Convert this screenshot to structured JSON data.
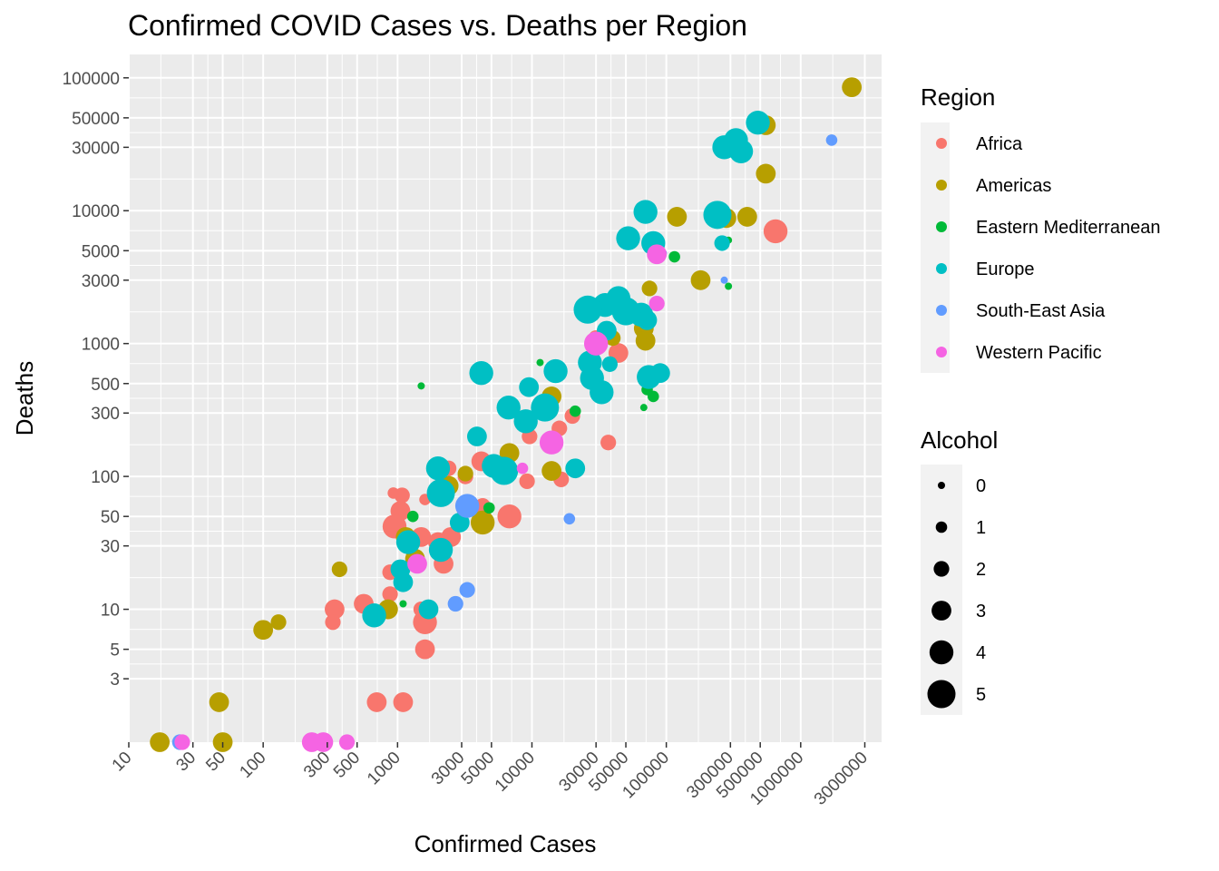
{
  "chart_data": {
    "type": "scatter",
    "title": "Confirmed COVID Cases vs. Deaths per Region",
    "xlabel": "Confirmed Cases",
    "ylabel": "Deaths",
    "x_scale": "log10",
    "y_scale": "log10",
    "xlim": [
      10,
      4000000
    ],
    "ylim": [
      1,
      150000
    ],
    "x_ticks": [
      10,
      30,
      50,
      100,
      300,
      500,
      1000,
      3000,
      5000,
      10000,
      30000,
      50000,
      100000,
      300000,
      500000,
      1000000,
      3000000
    ],
    "x_tick_labels": [
      "10",
      "30",
      "50",
      "100",
      "300",
      "500",
      "1000",
      "3000",
      "5000",
      "10000",
      "30000",
      "50000",
      "100000",
      "300000",
      "500000",
      "1000000",
      "3000000"
    ],
    "y_ticks": [
      3,
      5,
      10,
      30,
      50,
      100,
      300,
      500,
      1000,
      3000,
      5000,
      10000,
      30000,
      50000,
      100000
    ],
    "y_tick_labels": [
      "3",
      "5",
      "10",
      "30",
      "50",
      "100",
      "300",
      "500",
      "1000",
      "3000",
      "5000",
      "10000",
      "30000",
      "50000",
      "100000"
    ],
    "grid": true,
    "legend_position": "right",
    "color_legend": {
      "title": "Region",
      "items": [
        {
          "name": "Africa",
          "color": "#F8766D"
        },
        {
          "name": "Americas",
          "color": "#B79F00"
        },
        {
          "name": "Eastern Mediterranean",
          "color": "#00BA38"
        },
        {
          "name": "Europe",
          "color": "#00BFC4"
        },
        {
          "name": "South-East Asia",
          "color": "#619CFF"
        },
        {
          "name": "Western Pacific",
          "color": "#F564E3"
        }
      ]
    },
    "size_legend": {
      "title": "Alcohol",
      "items": [
        {
          "label": "0",
          "value": 0
        },
        {
          "label": "1",
          "value": 1
        },
        {
          "label": "2",
          "value": 2
        },
        {
          "label": "3",
          "value": 3
        },
        {
          "label": "4",
          "value": 4
        },
        {
          "label": "5",
          "value": 5
        }
      ]
    },
    "series": [
      {
        "name": "Africa",
        "points": [
          {
            "x": 930,
            "y": 75,
            "alcohol": 1
          },
          {
            "x": 1080,
            "y": 72,
            "alcohol": 2
          },
          {
            "x": 1050,
            "y": 55,
            "alcohol": 3
          },
          {
            "x": 950,
            "y": 42,
            "alcohol": 4
          },
          {
            "x": 1500,
            "y": 35,
            "alcohol": 3
          },
          {
            "x": 2000,
            "y": 32,
            "alcohol": 3
          },
          {
            "x": 2500,
            "y": 35,
            "alcohol": 3
          },
          {
            "x": 2200,
            "y": 22,
            "alcohol": 3
          },
          {
            "x": 1600,
            "y": 67,
            "alcohol": 1
          },
          {
            "x": 2400,
            "y": 115,
            "alcohol": 2
          },
          {
            "x": 3200,
            "y": 100,
            "alcohol": 2
          },
          {
            "x": 4200,
            "y": 130,
            "alcohol": 3
          },
          {
            "x": 4300,
            "y": 60,
            "alcohol": 2
          },
          {
            "x": 6800,
            "y": 50,
            "alcohol": 4
          },
          {
            "x": 9200,
            "y": 92,
            "alcohol": 2
          },
          {
            "x": 9600,
            "y": 200,
            "alcohol": 2
          },
          {
            "x": 16000,
            "y": 230,
            "alcohol": 2
          },
          {
            "x": 16500,
            "y": 95,
            "alcohol": 2
          },
          {
            "x": 20000,
            "y": 285,
            "alcohol": 2
          },
          {
            "x": 37000,
            "y": 180,
            "alcohol": 2
          },
          {
            "x": 44000,
            "y": 850,
            "alcohol": 3
          },
          {
            "x": 30000,
            "y": 1100,
            "alcohol": 2
          },
          {
            "x": 650000,
            "y": 7000,
            "alcohol": 4
          },
          {
            "x": 880,
            "y": 19,
            "alcohol": 2
          },
          {
            "x": 880,
            "y": 13,
            "alcohol": 2
          },
          {
            "x": 560,
            "y": 11,
            "alcohol": 3
          },
          {
            "x": 340,
            "y": 10,
            "alcohol": 3
          },
          {
            "x": 330,
            "y": 8,
            "alcohol": 2
          },
          {
            "x": 1500,
            "y": 10,
            "alcohol": 2
          },
          {
            "x": 1600,
            "y": 8,
            "alcohol": 4
          },
          {
            "x": 1600,
            "y": 5,
            "alcohol": 3
          },
          {
            "x": 700,
            "y": 2,
            "alcohol": 3
          },
          {
            "x": 1100,
            "y": 2,
            "alcohol": 3
          }
        ]
      },
      {
        "name": "Americas",
        "points": [
          {
            "x": 2400000,
            "y": 85000,
            "alcohol": 3
          },
          {
            "x": 550000,
            "y": 44000,
            "alcohol": 3
          },
          {
            "x": 550000,
            "y": 19000,
            "alcohol": 3
          },
          {
            "x": 120000,
            "y": 9000,
            "alcohol": 3
          },
          {
            "x": 280000,
            "y": 8800,
            "alcohol": 3
          },
          {
            "x": 400000,
            "y": 9000,
            "alcohol": 3
          },
          {
            "x": 180000,
            "y": 3000,
            "alcohol": 3
          },
          {
            "x": 75000,
            "y": 2600,
            "alcohol": 2
          },
          {
            "x": 68000,
            "y": 1300,
            "alcohol": 3
          },
          {
            "x": 70000,
            "y": 1050,
            "alcohol": 3
          },
          {
            "x": 40000,
            "y": 1100,
            "alcohol": 2
          },
          {
            "x": 14000,
            "y": 400,
            "alcohol": 3
          },
          {
            "x": 14000,
            "y": 110,
            "alcohol": 3
          },
          {
            "x": 6800,
            "y": 150,
            "alcohol": 3
          },
          {
            "x": 3200,
            "y": 105,
            "alcohol": 2
          },
          {
            "x": 2400,
            "y": 85,
            "alcohol": 3
          },
          {
            "x": 4300,
            "y": 45,
            "alcohol": 4
          },
          {
            "x": 1150,
            "y": 35,
            "alcohol": 3
          },
          {
            "x": 1350,
            "y": 24,
            "alcohol": 3
          },
          {
            "x": 370,
            "y": 20,
            "alcohol": 2
          },
          {
            "x": 130,
            "y": 8,
            "alcohol": 2
          },
          {
            "x": 100,
            "y": 7,
            "alcohol": 3
          },
          {
            "x": 850,
            "y": 10,
            "alcohol": 3
          },
          {
            "x": 47,
            "y": 2,
            "alcohol": 3
          },
          {
            "x": 17,
            "y": 1,
            "alcohol": 3
          },
          {
            "x": 50,
            "y": 1,
            "alcohol": 3
          }
        ]
      },
      {
        "name": "Eastern Mediterranean",
        "points": [
          {
            "x": 1500,
            "y": 480,
            "alcohol": 0
          },
          {
            "x": 11500,
            "y": 720,
            "alcohol": 0
          },
          {
            "x": 21000,
            "y": 310,
            "alcohol": 1
          },
          {
            "x": 68000,
            "y": 330,
            "alcohol": 0
          },
          {
            "x": 72000,
            "y": 450,
            "alcohol": 1
          },
          {
            "x": 80000,
            "y": 400,
            "alcohol": 1
          },
          {
            "x": 90000,
            "y": 4500,
            "alcohol": 0
          },
          {
            "x": 115000,
            "y": 4500,
            "alcohol": 1
          },
          {
            "x": 290000,
            "y": 6000,
            "alcohol": 0
          },
          {
            "x": 290000,
            "y": 2700,
            "alcohol": 0
          },
          {
            "x": 1300,
            "y": 50,
            "alcohol": 1
          },
          {
            "x": 4800,
            "y": 58,
            "alcohol": 1
          },
          {
            "x": 1100,
            "y": 11,
            "alcohol": 0
          }
        ]
      },
      {
        "name": "Europe",
        "points": [
          {
            "x": 480000,
            "y": 46000,
            "alcohol": 4
          },
          {
            "x": 330000,
            "y": 34000,
            "alcohol": 4
          },
          {
            "x": 270000,
            "y": 30000,
            "alcohol": 4
          },
          {
            "x": 360000,
            "y": 28000,
            "alcohol": 4
          },
          {
            "x": 240000,
            "y": 9300,
            "alcohol": 5
          },
          {
            "x": 70000,
            "y": 9800,
            "alcohol": 4
          },
          {
            "x": 52000,
            "y": 6200,
            "alcohol": 4
          },
          {
            "x": 80000,
            "y": 5700,
            "alcohol": 4
          },
          {
            "x": 260000,
            "y": 5700,
            "alcohol": 2
          },
          {
            "x": 44000,
            "y": 2200,
            "alcohol": 4
          },
          {
            "x": 35000,
            "y": 1950,
            "alcohol": 4
          },
          {
            "x": 26000,
            "y": 1800,
            "alcohol": 5
          },
          {
            "x": 50000,
            "y": 1750,
            "alcohol": 5
          },
          {
            "x": 65000,
            "y": 1650,
            "alcohol": 4
          },
          {
            "x": 72000,
            "y": 1500,
            "alcohol": 3
          },
          {
            "x": 36000,
            "y": 1250,
            "alcohol": 3
          },
          {
            "x": 27000,
            "y": 720,
            "alcohol": 4
          },
          {
            "x": 15000,
            "y": 620,
            "alcohol": 4
          },
          {
            "x": 28000,
            "y": 550,
            "alcohol": 4
          },
          {
            "x": 33000,
            "y": 430,
            "alcohol": 4
          },
          {
            "x": 38000,
            "y": 700,
            "alcohol": 2
          },
          {
            "x": 74000,
            "y": 560,
            "alcohol": 4
          },
          {
            "x": 90000,
            "y": 600,
            "alcohol": 3
          },
          {
            "x": 4200,
            "y": 600,
            "alcohol": 4
          },
          {
            "x": 9500,
            "y": 470,
            "alcohol": 3
          },
          {
            "x": 6700,
            "y": 330,
            "alcohol": 4
          },
          {
            "x": 12500,
            "y": 330,
            "alcohol": 5
          },
          {
            "x": 9000,
            "y": 260,
            "alcohol": 4
          },
          {
            "x": 3900,
            "y": 200,
            "alcohol": 3
          },
          {
            "x": 5200,
            "y": 120,
            "alcohol": 4
          },
          {
            "x": 6200,
            "y": 110,
            "alcohol": 5
          },
          {
            "x": 21000,
            "y": 115,
            "alcohol": 3
          },
          {
            "x": 2000,
            "y": 115,
            "alcohol": 4
          },
          {
            "x": 2100,
            "y": 75,
            "alcohol": 5
          },
          {
            "x": 2900,
            "y": 45,
            "alcohol": 3
          },
          {
            "x": 1200,
            "y": 32,
            "alcohol": 4
          },
          {
            "x": 2100,
            "y": 28,
            "alcohol": 4
          },
          {
            "x": 1050,
            "y": 20,
            "alcohol": 3
          },
          {
            "x": 1100,
            "y": 16,
            "alcohol": 3
          },
          {
            "x": 1700,
            "y": 10,
            "alcohol": 3
          },
          {
            "x": 670,
            "y": 9,
            "alcohol": 4
          }
        ]
      },
      {
        "name": "South-East Asia",
        "points": [
          {
            "x": 1700000,
            "y": 34000,
            "alcohol": 1
          },
          {
            "x": 95000,
            "y": 4800,
            "alcohol": 0
          },
          {
            "x": 270000,
            "y": 3000,
            "alcohol": 0
          },
          {
            "x": 3300,
            "y": 60,
            "alcohol": 4
          },
          {
            "x": 3300,
            "y": 14,
            "alcohol": 2
          },
          {
            "x": 2700,
            "y": 11,
            "alcohol": 2
          },
          {
            "x": 19000,
            "y": 48,
            "alcohol": 1
          },
          {
            "x": 24,
            "y": 1,
            "alcohol": 2
          }
        ]
      },
      {
        "name": "Western Pacific",
        "points": [
          {
            "x": 85000,
            "y": 4700,
            "alcohol": 3
          },
          {
            "x": 85000,
            "y": 2000,
            "alcohol": 2
          },
          {
            "x": 30000,
            "y": 1000,
            "alcohol": 4
          },
          {
            "x": 14000,
            "y": 180,
            "alcohol": 4
          },
          {
            "x": 8500,
            "y": 115,
            "alcohol": 1
          },
          {
            "x": 1400,
            "y": 22,
            "alcohol": 3
          },
          {
            "x": 25,
            "y": 1,
            "alcohol": 2
          },
          {
            "x": 230,
            "y": 1,
            "alcohol": 3
          },
          {
            "x": 280,
            "y": 1,
            "alcohol": 3
          },
          {
            "x": 420,
            "y": 1,
            "alcohol": 2
          }
        ]
      }
    ]
  }
}
